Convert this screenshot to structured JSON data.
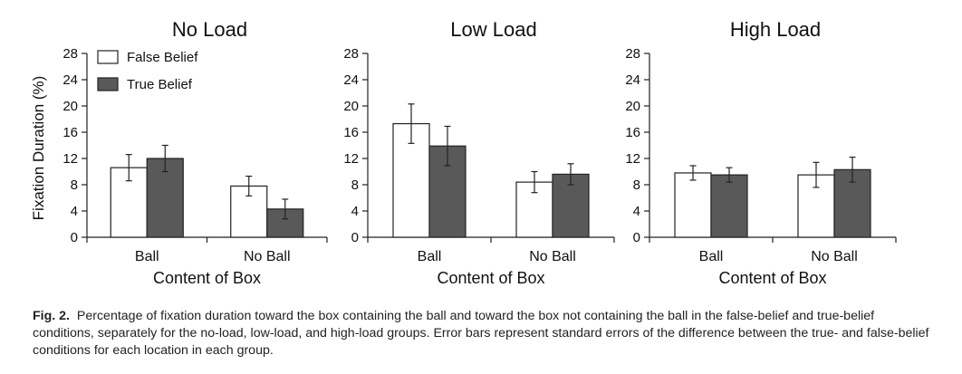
{
  "colors": {
    "false_belief": "#ffffff",
    "true_belief": "#595959",
    "axis": "#222222"
  },
  "chart_data": [
    {
      "type": "bar",
      "title": "No Load",
      "xlabel": "Content of Box",
      "ylabel": "Fixation Duration (%)",
      "categories": [
        "Ball",
        "No Ball"
      ],
      "ylim": [
        0,
        28
      ],
      "yticks": [
        0,
        4,
        8,
        12,
        16,
        20,
        24,
        28
      ],
      "series": [
        {
          "name": "False Belief",
          "values": [
            10.6,
            7.8
          ],
          "errors": [
            2.0,
            1.5
          ]
        },
        {
          "name": "True Belief",
          "values": [
            12.0,
            4.3
          ],
          "errors": [
            2.0,
            1.5
          ]
        }
      ],
      "legend": "top-left"
    },
    {
      "type": "bar",
      "title": "Low Load",
      "xlabel": "Content of Box",
      "ylabel": "",
      "categories": [
        "Ball",
        "No Ball"
      ],
      "ylim": [
        0,
        28
      ],
      "yticks": [
        0,
        4,
        8,
        12,
        16,
        20,
        24,
        28
      ],
      "series": [
        {
          "name": "False Belief",
          "values": [
            17.3,
            8.4
          ],
          "errors": [
            3.0,
            1.6
          ]
        },
        {
          "name": "True Belief",
          "values": [
            13.9,
            9.6
          ],
          "errors": [
            3.0,
            1.6
          ]
        }
      ]
    },
    {
      "type": "bar",
      "title": "High Load",
      "xlabel": "Content of Box",
      "ylabel": "",
      "categories": [
        "Ball",
        "No Ball"
      ],
      "ylim": [
        0,
        28
      ],
      "yticks": [
        0,
        4,
        8,
        12,
        16,
        20,
        24,
        28
      ],
      "series": [
        {
          "name": "False Belief",
          "values": [
            9.8,
            9.5
          ],
          "errors": [
            1.1,
            1.9
          ]
        },
        {
          "name": "True Belief",
          "values": [
            9.5,
            10.3
          ],
          "errors": [
            1.1,
            1.9
          ]
        }
      ]
    }
  ],
  "caption": {
    "label": "Fig. 2.",
    "text": "Percentage of fixation duration toward the box containing the ball and toward the box not containing the ball in the false-belief and true-belief conditions, separately for the no-load, low-load, and high-load groups. Error bars represent standard errors of the difference between the true- and false-belief conditions for each location in each group."
  }
}
